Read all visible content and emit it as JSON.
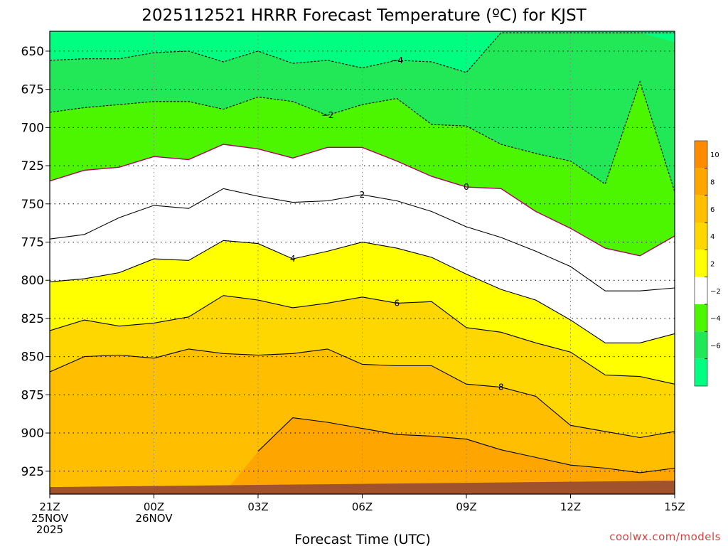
{
  "chart_data": {
    "type": "contour",
    "title": "2025112521 HRRR Forecast Temperature (ºC) for KJST",
    "xlabel": "Forecast Time (UTC)",
    "ylabel": "",
    "credit": "coolwx.com/models",
    "x_hours": [
      0,
      1,
      2,
      3,
      4,
      5,
      6,
      7,
      8,
      9,
      10,
      11,
      12,
      13,
      14,
      15,
      16,
      17,
      18
    ],
    "x_ticks": [
      {
        "hour": 0,
        "lines": [
          "21Z",
          "25NOV",
          "2025"
        ]
      },
      {
        "hour": 3,
        "lines": [
          "00Z",
          "26NOV"
        ]
      },
      {
        "hour": 6,
        "lines": [
          "03Z"
        ]
      },
      {
        "hour": 9,
        "lines": [
          "06Z"
        ]
      },
      {
        "hour": 12,
        "lines": [
          "09Z"
        ]
      },
      {
        "hour": 15,
        "lines": [
          "12Z"
        ]
      },
      {
        "hour": 18,
        "lines": [
          "15Z"
        ]
      }
    ],
    "y_ticks": [
      650,
      675,
      700,
      725,
      750,
      775,
      800,
      825,
      850,
      875,
      900,
      925
    ],
    "ylim": [
      940,
      637
    ],
    "surface_pressure": 934,
    "isotherms": [
      {
        "value": -6,
        "label": "",
        "dashed": true,
        "pressure": [
          650,
          650,
          650,
          650,
          650,
          650,
          645,
          640,
          638,
          638,
          638,
          638,
          638,
          638,
          638,
          638,
          638,
          638,
          644
        ]
      },
      {
        "value": -4,
        "label": "−4",
        "dashed": true,
        "pressure": [
          656,
          655,
          655,
          651,
          650,
          657,
          650,
          658,
          656,
          661,
          656,
          657,
          664,
          638,
          638,
          638,
          638,
          638,
          638
        ]
      },
      {
        "value": -2,
        "label": "−2",
        "dashed": true,
        "pressure": [
          690,
          687,
          685,
          683,
          683,
          688,
          680,
          683,
          692,
          685,
          681,
          698,
          699,
          711,
          717,
          722,
          737,
          670,
          742
        ]
      },
      {
        "value": 0,
        "label": "0",
        "dashed": false,
        "pressure": [
          735,
          728,
          726,
          719,
          721,
          711,
          714,
          720,
          713,
          713,
          722,
          732,
          739,
          740,
          755,
          766,
          779,
          784,
          771
        ]
      },
      {
        "value": 2,
        "label": "2",
        "dashed": false,
        "pressure": [
          773,
          770,
          759,
          751,
          753,
          740,
          745,
          749,
          748,
          744,
          748,
          755,
          765,
          772,
          781,
          791,
          807,
          807,
          805
        ]
      },
      {
        "value": 4,
        "label": "4",
        "dashed": false,
        "pressure": [
          801,
          799,
          795,
          786,
          787,
          774,
          776,
          786,
          781,
          775,
          779,
          785,
          796,
          806,
          813,
          826,
          841,
          841,
          835
        ]
      },
      {
        "value": 6,
        "label": "6",
        "dashed": false,
        "pressure": [
          833,
          826,
          830,
          828,
          824,
          810,
          813,
          818,
          815,
          811,
          815,
          814,
          831,
          834,
          841,
          847,
          862,
          863,
          868
        ]
      },
      {
        "value": 8,
        "label": "8",
        "dashed": false,
        "pressure": [
          860,
          850,
          849,
          851,
          845,
          848,
          849,
          848,
          845,
          855,
          856,
          856,
          868,
          870,
          876,
          895,
          899,
          903,
          899
        ]
      },
      {
        "value": 10,
        "label": "",
        "dashed": false,
        "pressure": [
          940,
          940,
          940,
          940,
          940,
          940,
          912,
          890,
          893,
          897,
          901,
          902,
          904,
          911,
          916,
          921,
          923,
          926,
          923
        ]
      }
    ],
    "colorbar": {
      "ticks": [
        "10",
        "8",
        "6",
        "4",
        "2",
        "−2",
        "−4",
        "−6"
      ],
      "colors": [
        "#ff8c00",
        "#ffa500",
        "#ffbe00",
        "#ffd700",
        "#ffff00",
        "#ffffff",
        "#4cf500",
        "#22e858",
        "#00ff80"
      ]
    },
    "band_colors": {
      "below_-6": "#00ff80",
      "-6_to_-4": "#22e858",
      "-4_to_-2": "#4cf500",
      "-2_to_2": "#ffffff",
      "2_to_4": "#ffff00",
      "4_to_6": "#ffd700",
      "6_to_8": "#ffbe00",
      "8_to_10": "#ffa500",
      "above_10": "#ff8c00",
      "zero_line": "#b00060",
      "ground": "#a0522d"
    }
  }
}
